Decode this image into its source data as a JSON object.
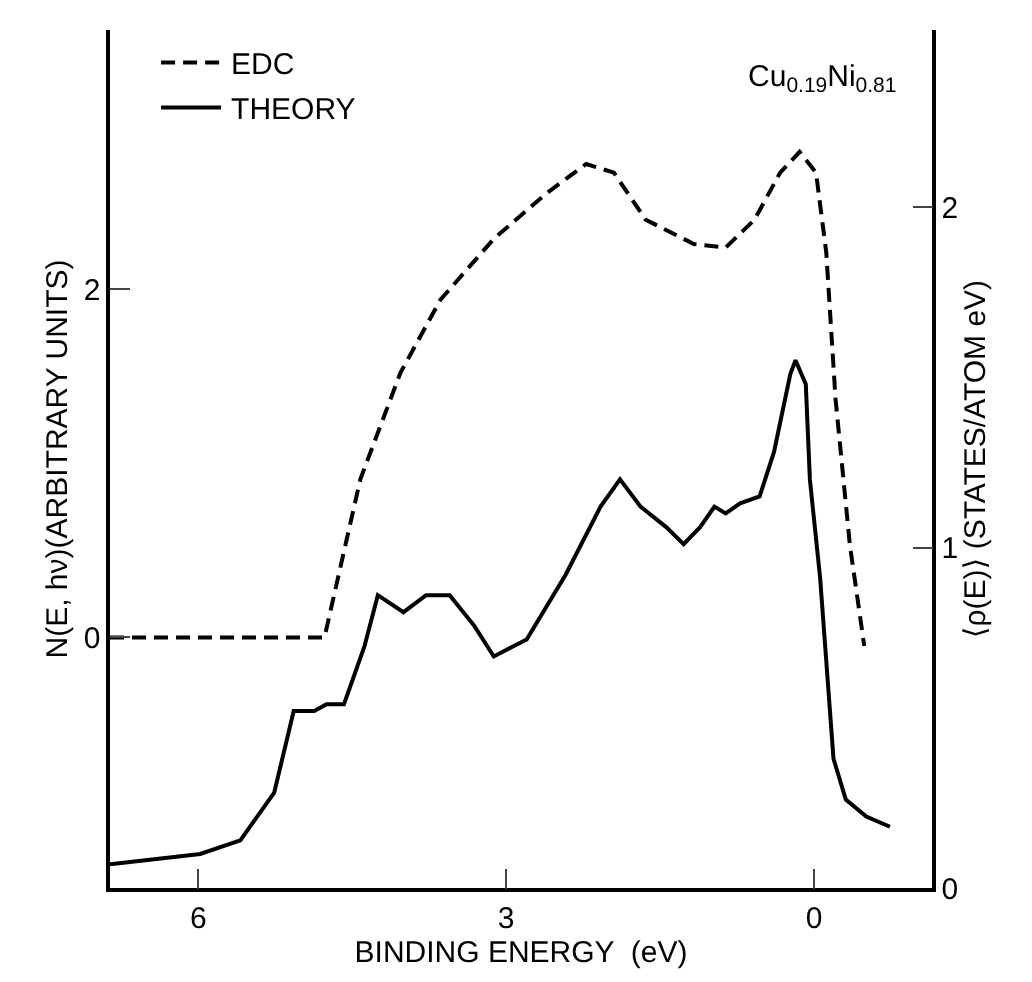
{
  "chart_data": {
    "type": "line",
    "xlabel": "BINDING ENERGY  (eV)",
    "ylabel": "N(E, hν)(ARBITRARY UNITS)",
    "y2label": "⟨ρ(E)⟩ (STATES/ATOM eV)",
    "annotations": [
      "Cu$_{0.19}$Ni$_{0.81}$"
    ],
    "xlim": [
      6.86,
      -1.15
    ],
    "xticks": [
      6,
      3,
      0
    ],
    "ylim": [
      -1.44,
      3.49
    ],
    "yticks": [
      0,
      2
    ],
    "y2lim": [
      0,
      2.52
    ],
    "y2ticks": [
      0,
      1,
      2
    ],
    "legend": "top left",
    "series": [
      {
        "name": "EDC",
        "color": "#000000",
        "line_style": "dashed",
        "axis": "y",
        "x": [
          6.86,
          4.77,
          4.42,
          4.03,
          3.64,
          3.12,
          2.61,
          2.22,
          1.95,
          1.64,
          1.17,
          0.86,
          0.58,
          0.33,
          0.14,
          -0.02,
          -0.12,
          -0.21,
          -0.35,
          -0.49
        ],
        "values": [
          0,
          0,
          0.91,
          1.52,
          1.94,
          2.29,
          2.55,
          2.72,
          2.67,
          2.4,
          2.26,
          2.24,
          2.4,
          2.67,
          2.79,
          2.67,
          2.21,
          1.37,
          0.53,
          -0.05
        ]
      },
      {
        "name": "THEORY",
        "color": "#000000",
        "line_style": "solid",
        "axis": "y2",
        "x": [
          6.86,
          5.98,
          5.59,
          5.26,
          5.07,
          4.87,
          4.75,
          4.58,
          4.38,
          4.25,
          4.0,
          3.78,
          3.55,
          3.31,
          3.12,
          2.8,
          2.42,
          2.08,
          1.89,
          1.69,
          1.44,
          1.27,
          1.11,
          0.97,
          0.86,
          0.72,
          0.53,
          0.39,
          0.23,
          0.18,
          0.08,
          0.04,
          -0.06,
          -0.19,
          -0.31,
          -0.51,
          -0.74
        ],
        "values": [
          0.07,
          0.1,
          0.14,
          0.28,
          0.52,
          0.52,
          0.54,
          0.54,
          0.71,
          0.86,
          0.81,
          0.86,
          0.86,
          0.77,
          0.68,
          0.73,
          0.92,
          1.12,
          1.2,
          1.12,
          1.06,
          1.01,
          1.06,
          1.12,
          1.1,
          1.13,
          1.15,
          1.28,
          1.51,
          1.55,
          1.48,
          1.2,
          0.91,
          0.38,
          0.26,
          0.21,
          0.18
        ]
      }
    ]
  }
}
